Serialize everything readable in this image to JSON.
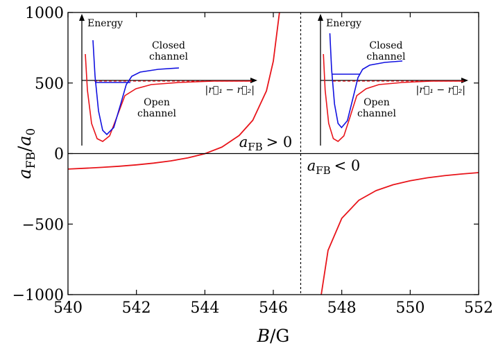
{
  "chart_data": {
    "type": "line",
    "xlabel_var": "B",
    "xlabel_unit": "G",
    "ylabel_var": "a",
    "ylabel_sub": "FB",
    "ylabel_den": "a",
    "ylabel_den_sub": "0",
    "xlim": [
      540,
      552
    ],
    "ylim": [
      -1000,
      1000
    ],
    "x_ticks": [
      540,
      542,
      544,
      546,
      548,
      550,
      552
    ],
    "y_ticks": [
      -1000,
      -500,
      0,
      500,
      1000
    ],
    "y_tick_labels": [
      "−1000",
      "−500",
      "0",
      "500",
      "1000"
    ],
    "resonance_B": 546.8,
    "grid": false,
    "colors": {
      "curve": "#e8141a",
      "closed": "#1010e0",
      "axis": "#000000"
    },
    "series": [
      {
        "points": [
          [
            540,
            -110
          ],
          [
            540.5,
            -104
          ],
          [
            541,
            -98
          ],
          [
            541.5,
            -90
          ],
          [
            542,
            -80
          ],
          [
            542.5,
            -68
          ],
          [
            543,
            -52
          ],
          [
            543.5,
            -31
          ],
          [
            544,
            -1
          ],
          [
            544.5,
            46
          ],
          [
            545,
            128
          ],
          [
            545.4,
            236
          ],
          [
            545.8,
            444
          ],
          [
            546.0,
            655
          ],
          [
            546.2,
            1042
          ]
        ]
      },
      {
        "points": [
          [
            547.4,
            -1000
          ],
          [
            547.6,
            -686
          ],
          [
            548,
            -459
          ],
          [
            548.5,
            -331
          ],
          [
            549,
            -263
          ],
          [
            549.5,
            -221
          ],
          [
            550,
            -193
          ],
          [
            550.5,
            -172
          ],
          [
            551,
            -157
          ],
          [
            551.5,
            -145
          ],
          [
            552,
            -135
          ]
        ]
      }
    ],
    "annotations": {
      "positive": {
        "var": "a",
        "sub": "FB",
        "rel": "> 0"
      },
      "negative": {
        "var": "a",
        "sub": "FB",
        "rel": "< 0"
      }
    },
    "insets": [
      {
        "energy": "Energy",
        "closed_1": "Closed",
        "closed_2": "channel",
        "open_1": "Open",
        "open_2": "channel",
        "coord": "|r⃗₁ − r⃗₂|",
        "bound_level": 0.38
      },
      {
        "energy": "Energy",
        "closed_1": "Closed",
        "closed_2": "channel",
        "open_1": "Open",
        "open_2": "channel",
        "coord": "|r⃗₁ − r⃗₂|",
        "bound_level": 0.52
      }
    ]
  }
}
